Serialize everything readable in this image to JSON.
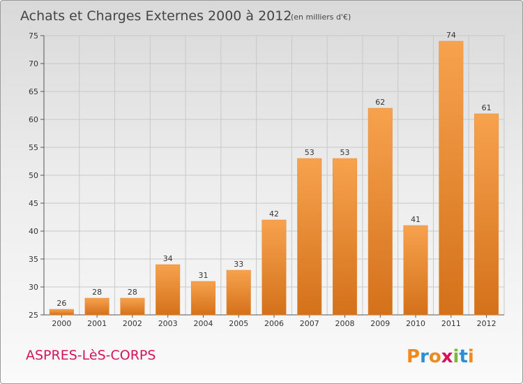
{
  "chart_data": {
    "type": "bar",
    "title": "Achats et Charges Externes 2000 à 2012",
    "subtitle": "(en milliers d'€)",
    "xlabel": "",
    "ylabel": "",
    "categories": [
      "2000",
      "2001",
      "2002",
      "2003",
      "2004",
      "2005",
      "2006",
      "2007",
      "2008",
      "2009",
      "2010",
      "2011",
      "2012"
    ],
    "values": [
      26,
      28,
      28,
      34,
      31,
      33,
      42,
      53,
      53,
      62,
      41,
      74,
      61
    ],
    "ylim": [
      25,
      75
    ],
    "yticks": [
      25,
      30,
      35,
      40,
      45,
      50,
      55,
      60,
      65,
      70,
      75
    ],
    "grid": true,
    "colors": {
      "bar_light": "#f7a24e",
      "bar_dark": "#d4711a",
      "grid": "#c8c8c8"
    }
  },
  "footer": {
    "commune": "ASPRES-LèS-CORPS",
    "logo": "Proxiti",
    "logo_colors": [
      "#f08a1c",
      "#2a8fd6",
      "#f08a1c",
      "#d4145a",
      "#7ab83a",
      "#2a8fd6",
      "#f08a1c"
    ]
  }
}
